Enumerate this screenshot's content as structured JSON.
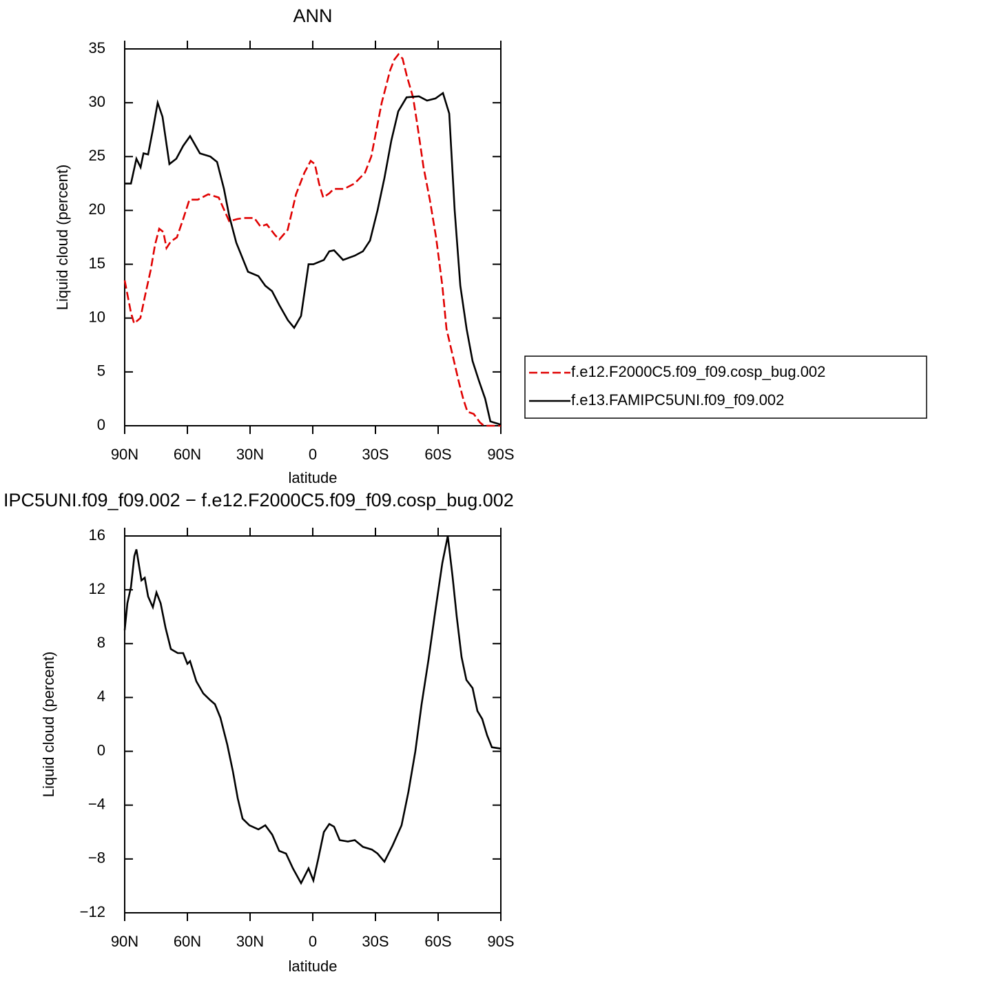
{
  "chart_data": [
    {
      "type": "line",
      "title": "ANN",
      "x_label": "latitude",
      "y_label": "Liquid cloud (percent)",
      "xlim": [
        90,
        -90
      ],
      "xticks": [
        {
          "value": 90,
          "label": "90N"
        },
        {
          "value": 60,
          "label": "60N"
        },
        {
          "value": 30,
          "label": "30N"
        },
        0,
        {
          "value": -30,
          "label": "30S"
        },
        {
          "value": -60,
          "label": "60S"
        },
        {
          "value": -90,
          "label": "90S"
        }
      ],
      "ylim": [
        0,
        35
      ],
      "yticks": [
        0,
        5,
        10,
        15,
        20,
        25,
        30,
        35
      ],
      "legend": "right",
      "series": [
        {
          "name": "f.e12.F2000C5.f09_f09.cosp_bug.002",
          "color": "#e00000",
          "line_style": "dashed",
          "x": [
            90,
            87,
            85.5,
            82.5,
            80,
            77.5,
            75.5,
            73.5,
            71.5,
            70,
            68,
            65,
            62,
            59,
            55,
            50,
            45,
            43,
            40,
            36,
            33,
            28,
            25,
            22,
            18,
            16,
            12,
            8,
            4,
            1,
            -1,
            -3,
            -5,
            -8,
            -10,
            -15,
            -20,
            -25,
            -28,
            -31,
            -33,
            -35,
            -37,
            -39,
            -41,
            -43,
            -45,
            -48,
            -50,
            -53,
            -56,
            -59,
            -62,
            -64,
            -67,
            -70,
            -72,
            -74,
            -77,
            -80,
            -82,
            -90
          ],
          "values": [
            13.5,
            10.5,
            9.5,
            10,
            12.3,
            14.5,
            16.8,
            18.3,
            18,
            16.5,
            17.1,
            17.5,
            19.2,
            21,
            21,
            21.5,
            21.2,
            20.3,
            19,
            19.2,
            19.3,
            19.3,
            18.5,
            18.7,
            17.7,
            17.3,
            18.2,
            21.5,
            23.5,
            24.6,
            24.3,
            22.5,
            21.2,
            21.6,
            22,
            22,
            22.5,
            23.5,
            25,
            28,
            30,
            31.5,
            33,
            34,
            34.5,
            34.1,
            32.5,
            30.5,
            28,
            24,
            21,
            17.5,
            13,
            9,
            6.5,
            4,
            2.5,
            1.3,
            1.1,
            0.3,
            0,
            0
          ]
        },
        {
          "name": "f.e13.FAMIPC5UNI.f09_f09.002",
          "color": "#000000",
          "line_style": "solid",
          "x": [
            90,
            87,
            84.4,
            82.4,
            81,
            78.8,
            76.5,
            74.2,
            71.9,
            68.6,
            65.3,
            62,
            58.7,
            54,
            49,
            45.8,
            42.5,
            40,
            36.6,
            31,
            26,
            22.7,
            19.5,
            16,
            11.9,
            8.9,
            5.6,
            2,
            -0.3,
            -5.3,
            -7.9,
            -10.2,
            -14.5,
            -20.1,
            -24,
            -27.4,
            -31,
            -34.3,
            -37.6,
            -40.9,
            -44.9,
            -50.8,
            -54.7,
            -58.7,
            -62.3,
            -65.3,
            -67.9,
            -70.6,
            -73.6,
            -76.5,
            -79.5,
            -82.5,
            -85,
            -90
          ],
          "values": [
            22.5,
            22.5,
            24.8,
            24,
            25.3,
            25.2,
            27.5,
            30,
            28.7,
            24.3,
            24.8,
            26,
            26.9,
            25.3,
            25,
            24.5,
            22,
            19.5,
            17,
            14.3,
            13.9,
            13,
            12.5,
            11.2,
            9.8,
            9.1,
            10.2,
            15,
            15,
            15.4,
            16.2,
            16.3,
            15.4,
            15.8,
            16.2,
            17.2,
            20,
            23,
            26.5,
            29.2,
            30.5,
            30.6,
            30.2,
            30.4,
            30.9,
            29,
            20,
            13,
            9,
            6,
            4.2,
            2.5,
            0.4,
            0.1
          ]
        }
      ]
    },
    {
      "type": "line",
      "title": "IPC5UNI.f09_f09.002 − f.e12.F2000C5.f09_f09.cosp_bug.002",
      "x_label": "latitude",
      "y_label": "Liquid cloud (percent)",
      "xlim": [
        90,
        -90
      ],
      "xticks": [
        {
          "value": 90,
          "label": "90N"
        },
        {
          "value": 60,
          "label": "60N"
        },
        {
          "value": 30,
          "label": "30N"
        },
        0,
        {
          "value": -30,
          "label": "30S"
        },
        {
          "value": -60,
          "label": "60S"
        },
        {
          "value": -90,
          "label": "90S"
        }
      ],
      "ylim": [
        -12,
        16
      ],
      "yticks": [
        {
          "value": -12,
          "label": "−12"
        },
        {
          "value": -8,
          "label": "−8"
        },
        {
          "value": -4,
          "label": "−4"
        },
        0,
        4,
        8,
        12,
        16
      ],
      "series": [
        {
          "color": "#000000",
          "line_style": "solid",
          "x": [
            90,
            88.7,
            87,
            85.4,
            84.4,
            82,
            80.4,
            78.8,
            76.5,
            74.8,
            72.8,
            70.5,
            67.9,
            64.6,
            62,
            60,
            58.7,
            55.7,
            52.4,
            49.1,
            46.8,
            44.2,
            40.9,
            38.2,
            35.9,
            33.6,
            30.3,
            26,
            22.7,
            19.4,
            16.1,
            12.8,
            9.5,
            5.6,
            2,
            -0.3,
            -2.6,
            -5.3,
            -7.9,
            -10.2,
            -12.9,
            -16.8,
            -20.1,
            -24,
            -28.3,
            -31,
            -34.3,
            -38.2,
            -42.5,
            -45.8,
            -49.1,
            -52.1,
            -55.4,
            -58.7,
            -62,
            -64.6,
            -66.9,
            -68.9,
            -71.2,
            -73.5,
            -76.5,
            -78.8,
            -81.1,
            -83.4,
            -85.7,
            -90
          ],
          "values": [
            9,
            11,
            12.2,
            14.5,
            15,
            12.7,
            12.9,
            11.5,
            10.7,
            11.8,
            11,
            9.2,
            7.6,
            7.3,
            7.3,
            6.5,
            6.7,
            5.2,
            4.3,
            3.8,
            3.5,
            2.5,
            0.5,
            -1.5,
            -3.5,
            -5,
            -5.5,
            -5.8,
            -5.5,
            -6.2,
            -7.4,
            -7.6,
            -8.7,
            -9.8,
            -8.7,
            -9.6,
            -8,
            -6,
            -5.4,
            -5.6,
            -6.6,
            -6.7,
            -6.6,
            -7.1,
            -7.3,
            -7.6,
            -8.2,
            -7,
            -5.5,
            -3,
            0,
            3.5,
            6.8,
            10.5,
            14,
            16,
            13,
            10,
            7,
            5.3,
            4.7,
            3,
            2.4,
            1.2,
            0.3,
            0.2
          ]
        }
      ]
    }
  ]
}
